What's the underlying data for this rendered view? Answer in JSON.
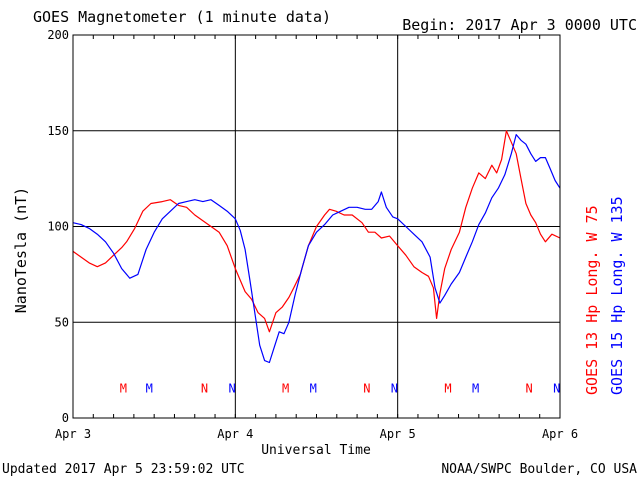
{
  "chart_data": {
    "type": "line",
    "title": "GOES Magnetometer (1 minute data)",
    "begin": "Begin:  2017 Apr 3 0000 UTC",
    "xlabel": "Universal Time",
    "ylabel": "NanoTesla (nT)",
    "updated": "Updated 2017 Apr  5 23:59:02 UTC",
    "source": "NOAA/SWPC Boulder, CO USA",
    "ylim": [
      0,
      200
    ],
    "xlim": [
      0,
      3
    ],
    "x_unit": "days since 2017 Apr 3 0000 UTC",
    "grid": true,
    "yticks": [
      0,
      50,
      100,
      150,
      200
    ],
    "xticks": [
      {
        "x": 0,
        "label": "Apr 3"
      },
      {
        "x": 1,
        "label": "Apr 4"
      },
      {
        "x": 2,
        "label": "Apr 5"
      },
      {
        "x": 3,
        "label": "Apr 6"
      }
    ],
    "series": [
      {
        "name": "GOES 13 Hp  Long. W 75",
        "color": "#ff0000",
        "points": [
          [
            0.0,
            87
          ],
          [
            0.05,
            84
          ],
          [
            0.1,
            81
          ],
          [
            0.15,
            79
          ],
          [
            0.2,
            81
          ],
          [
            0.25,
            85
          ],
          [
            0.3,
            89
          ],
          [
            0.33,
            92
          ],
          [
            0.38,
            99
          ],
          [
            0.43,
            108
          ],
          [
            0.48,
            112
          ],
          [
            0.55,
            113
          ],
          [
            0.6,
            114
          ],
          [
            0.65,
            111
          ],
          [
            0.7,
            110
          ],
          [
            0.75,
            106
          ],
          [
            0.8,
            103
          ],
          [
            0.85,
            100
          ],
          [
            0.9,
            97
          ],
          [
            0.95,
            90
          ],
          [
            1.0,
            78
          ],
          [
            1.03,
            72
          ],
          [
            1.06,
            66
          ],
          [
            1.1,
            62
          ],
          [
            1.14,
            55
          ],
          [
            1.18,
            52
          ],
          [
            1.21,
            45
          ],
          [
            1.25,
            55
          ],
          [
            1.29,
            58
          ],
          [
            1.33,
            63
          ],
          [
            1.36,
            68
          ],
          [
            1.4,
            75
          ],
          [
            1.45,
            90
          ],
          [
            1.5,
            100
          ],
          [
            1.55,
            106
          ],
          [
            1.58,
            109
          ],
          [
            1.62,
            108
          ],
          [
            1.67,
            106
          ],
          [
            1.72,
            106
          ],
          [
            1.78,
            102
          ],
          [
            1.82,
            97
          ],
          [
            1.86,
            97
          ],
          [
            1.9,
            94
          ],
          [
            1.95,
            95
          ],
          [
            2.0,
            90
          ],
          [
            2.05,
            85
          ],
          [
            2.1,
            79
          ],
          [
            2.15,
            76
          ],
          [
            2.19,
            74
          ],
          [
            2.22,
            68
          ],
          [
            2.24,
            52
          ],
          [
            2.26,
            65
          ],
          [
            2.29,
            78
          ],
          [
            2.33,
            88
          ],
          [
            2.38,
            97
          ],
          [
            2.42,
            110
          ],
          [
            2.46,
            120
          ],
          [
            2.5,
            128
          ],
          [
            2.54,
            125
          ],
          [
            2.58,
            132
          ],
          [
            2.61,
            128
          ],
          [
            2.64,
            135
          ],
          [
            2.67,
            150
          ],
          [
            2.7,
            144
          ],
          [
            2.73,
            138
          ],
          [
            2.76,
            125
          ],
          [
            2.79,
            112
          ],
          [
            2.82,
            106
          ],
          [
            2.85,
            102
          ],
          [
            2.88,
            96
          ],
          [
            2.91,
            92
          ],
          [
            2.95,
            96
          ],
          [
            3.0,
            94
          ]
        ]
      },
      {
        "name": "GOES 15 Hp  Long. W 135",
        "color": "#0000ff",
        "points": [
          [
            0.0,
            102
          ],
          [
            0.05,
            101
          ],
          [
            0.1,
            99
          ],
          [
            0.15,
            96
          ],
          [
            0.2,
            92
          ],
          [
            0.25,
            86
          ],
          [
            0.3,
            78
          ],
          [
            0.35,
            73
          ],
          [
            0.4,
            75
          ],
          [
            0.45,
            88
          ],
          [
            0.5,
            97
          ],
          [
            0.55,
            104
          ],
          [
            0.6,
            108
          ],
          [
            0.65,
            112
          ],
          [
            0.7,
            113
          ],
          [
            0.75,
            114
          ],
          [
            0.8,
            113
          ],
          [
            0.85,
            114
          ],
          [
            0.9,
            111
          ],
          [
            0.95,
            108
          ],
          [
            1.0,
            104
          ],
          [
            1.03,
            98
          ],
          [
            1.06,
            88
          ],
          [
            1.09,
            72
          ],
          [
            1.12,
            55
          ],
          [
            1.15,
            38
          ],
          [
            1.18,
            30
          ],
          [
            1.21,
            29
          ],
          [
            1.24,
            37
          ],
          [
            1.27,
            45
          ],
          [
            1.3,
            44
          ],
          [
            1.33,
            50
          ],
          [
            1.37,
            65
          ],
          [
            1.41,
            78
          ],
          [
            1.45,
            90
          ],
          [
            1.5,
            97
          ],
          [
            1.55,
            101
          ],
          [
            1.6,
            106
          ],
          [
            1.65,
            108
          ],
          [
            1.7,
            110
          ],
          [
            1.75,
            110
          ],
          [
            1.8,
            109
          ],
          [
            1.84,
            109
          ],
          [
            1.88,
            113
          ],
          [
            1.9,
            118
          ],
          [
            1.93,
            110
          ],
          [
            1.97,
            105
          ],
          [
            2.0,
            104
          ],
          [
            2.05,
            100
          ],
          [
            2.1,
            96
          ],
          [
            2.15,
            92
          ],
          [
            2.2,
            84
          ],
          [
            2.23,
            68
          ],
          [
            2.26,
            60
          ],
          [
            2.29,
            64
          ],
          [
            2.33,
            70
          ],
          [
            2.38,
            76
          ],
          [
            2.42,
            84
          ],
          [
            2.46,
            92
          ],
          [
            2.5,
            101
          ],
          [
            2.54,
            107
          ],
          [
            2.58,
            115
          ],
          [
            2.62,
            120
          ],
          [
            2.66,
            127
          ],
          [
            2.7,
            138
          ],
          [
            2.73,
            148
          ],
          [
            2.76,
            145
          ],
          [
            2.79,
            143
          ],
          [
            2.82,
            138
          ],
          [
            2.85,
            134
          ],
          [
            2.88,
            136
          ],
          [
            2.91,
            136
          ],
          [
            2.94,
            130
          ],
          [
            2.97,
            124
          ],
          [
            3.0,
            120
          ]
        ]
      }
    ],
    "markers": [
      {
        "label": "M",
        "x": 0.31,
        "color": "#ff0000"
      },
      {
        "label": "M",
        "x": 0.47,
        "color": "#0000ff"
      },
      {
        "label": "N",
        "x": 0.81,
        "color": "#ff0000"
      },
      {
        "label": "N",
        "x": 0.98,
        "color": "#0000ff"
      },
      {
        "label": "M",
        "x": 1.31,
        "color": "#ff0000"
      },
      {
        "label": "M",
        "x": 1.48,
        "color": "#0000ff"
      },
      {
        "label": "N",
        "x": 1.81,
        "color": "#ff0000"
      },
      {
        "label": "N",
        "x": 1.98,
        "color": "#0000ff"
      },
      {
        "label": "M",
        "x": 2.31,
        "color": "#ff0000"
      },
      {
        "label": "M",
        "x": 2.48,
        "color": "#0000ff"
      },
      {
        "label": "N",
        "x": 2.81,
        "color": "#ff0000"
      },
      {
        "label": "N",
        "x": 2.98,
        "color": "#0000ff"
      }
    ],
    "marker_level": 16
  }
}
